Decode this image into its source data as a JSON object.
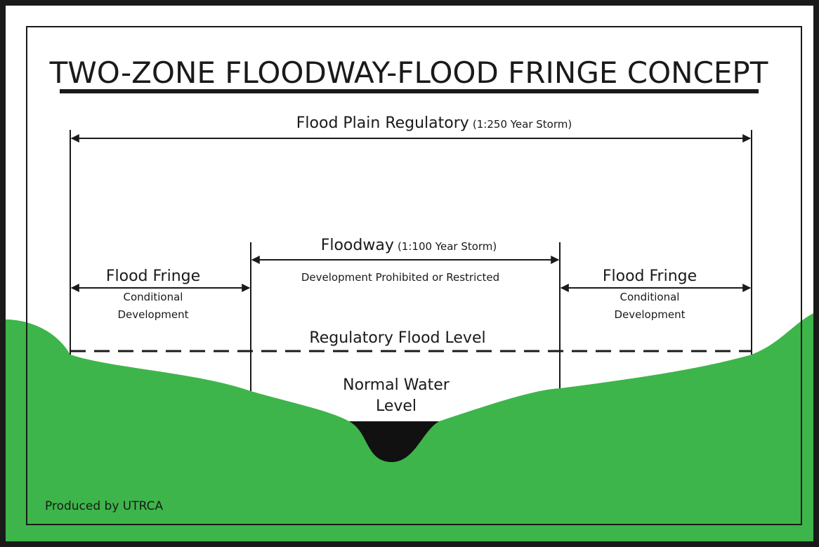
{
  "title": "TWO-ZONE FLOODWAY-FLOOD FRINGE CONCEPT",
  "flood_plain": {
    "label": "Flood Plain Regulatory",
    "storm": "(1:250 Year Storm)"
  },
  "floodway": {
    "label": "Floodway",
    "storm": "(1:100 Year Storm)",
    "note": "Development Prohibited or Restricted"
  },
  "fringe_left": {
    "label": "Flood Fringe",
    "note": [
      "Conditional",
      "Development"
    ]
  },
  "fringe_right": {
    "label": "Flood Fringe",
    "note": [
      "Conditional",
      "Development"
    ]
  },
  "regulatory_level": "Regulatory Flood Level",
  "normal_water": [
    "Normal Water",
    "Level"
  ],
  "credit": "Produced by UTRCA"
}
